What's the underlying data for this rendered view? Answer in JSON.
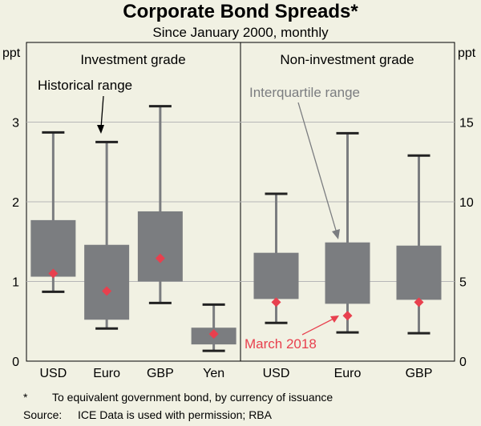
{
  "chart_data": {
    "type": "box",
    "title": "Corporate Bond Spreads*",
    "subtitle": "Since January 2000, monthly",
    "axis_unit": "ppt",
    "left_axis": {
      "ylim": [
        0,
        4
      ],
      "ticks": [
        "0",
        "1",
        "2",
        "3"
      ]
    },
    "right_axis": {
      "ylim": [
        0,
        20
      ],
      "ticks": [
        "0",
        "5",
        "10",
        "15"
      ]
    },
    "grid": true,
    "panels": [
      {
        "title": "Investment grade",
        "axis": "left",
        "categories": [
          {
            "label": "USD",
            "min": 0.87,
            "q1": 1.06,
            "q3": 1.77,
            "max": 2.87,
            "latest": 1.1
          },
          {
            "label": "Euro",
            "min": 0.41,
            "q1": 0.52,
            "q3": 1.46,
            "max": 2.75,
            "latest": 0.88
          },
          {
            "label": "GBP",
            "min": 0.73,
            "q1": 1.0,
            "q3": 1.88,
            "max": 3.2,
            "latest": 1.29
          },
          {
            "label": "Yen",
            "min": 0.13,
            "q1": 0.21,
            "q3": 0.42,
            "max": 0.71,
            "latest": 0.34
          }
        ]
      },
      {
        "title": "Non-investment grade",
        "axis": "right",
        "categories": [
          {
            "label": "USD",
            "min": 2.4,
            "q1": 3.9,
            "q3": 6.8,
            "max": 10.5,
            "latest": 3.7
          },
          {
            "label": "Euro",
            "min": 1.8,
            "q1": 3.6,
            "q3": 7.45,
            "max": 14.3,
            "latest": 2.85
          },
          {
            "label": "GBP",
            "min": 1.75,
            "q1": 3.85,
            "q3": 7.25,
            "max": 12.9,
            "latest": 3.7
          }
        ]
      }
    ],
    "annotations": {
      "historical_range": "Historical range",
      "interquartile_range": "Interquartile range",
      "latest": "March 2018"
    },
    "footnote_marker": "*",
    "footnote": "To equivalent government bond, by currency of issuance",
    "source_label": "Source:",
    "source_text": "ICE Data is used with permission; RBA"
  },
  "colors": {
    "background": "#f1f1e3",
    "box": "#7b7d80",
    "marker": "#e8404e",
    "grid": "#b7b7b7",
    "annotation_gray": "#7b7d80",
    "annotation_red": "#e8404e"
  }
}
